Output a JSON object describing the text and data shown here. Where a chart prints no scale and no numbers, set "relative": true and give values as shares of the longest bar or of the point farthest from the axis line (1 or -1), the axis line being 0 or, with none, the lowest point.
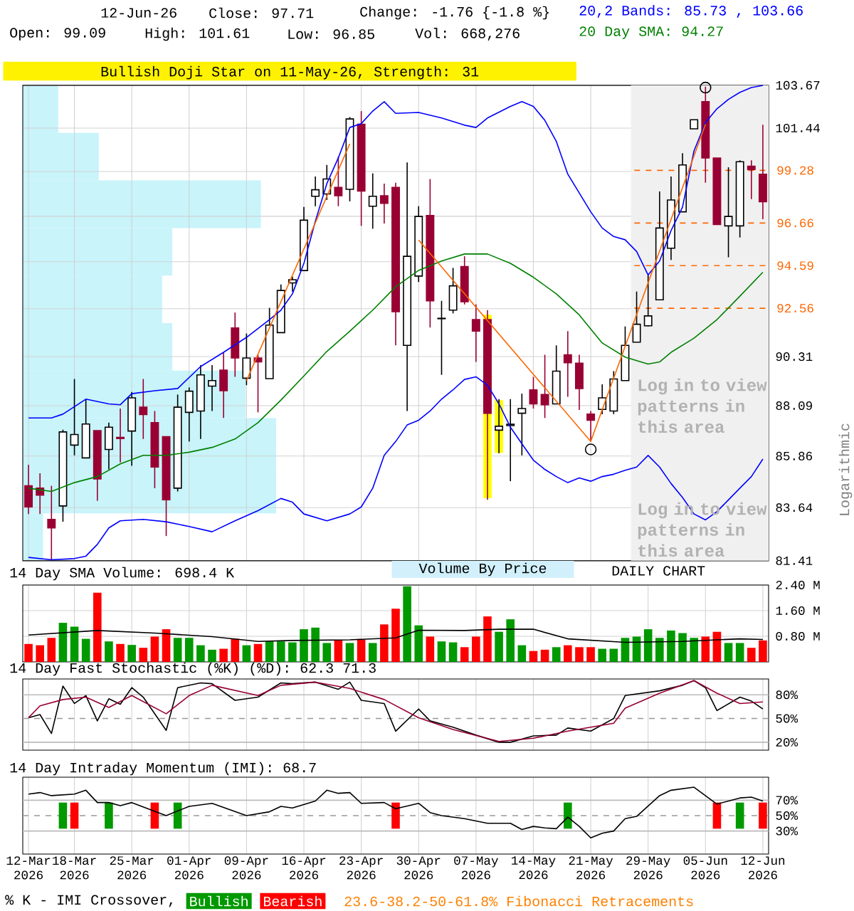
{
  "chart_data": [
    {
      "type": "candlestick",
      "categories": [
        null,
        null,
        null,
        null,
        null,
        null,
        null,
        null,
        null,
        null,
        null,
        null,
        null,
        null,
        null,
        null,
        null,
        null,
        null,
        null,
        null,
        null,
        null,
        null,
        null,
        null,
        null,
        null,
        null,
        null,
        null,
        null,
        null,
        null,
        null,
        null,
        null,
        null,
        null,
        null,
        null,
        null,
        null,
        null,
        null,
        null,
        null,
        null,
        null,
        null,
        null,
        null,
        null,
        null,
        null,
        null,
        null,
        null,
        null,
        null,
        null,
        null,
        null,
        null,
        null
      ],
      "ohlc": [
        [
          84.57,
          85.48,
          83.37,
          83.67
        ],
        [
          84.47,
          85.11,
          83.37,
          84.17
        ],
        [
          83.14,
          84.57,
          81.45,
          82.78
        ],
        [
          83.71,
          87.02,
          83.04,
          86.92
        ],
        [
          86.34,
          89.29,
          85.89,
          86.81
        ],
        [
          85.78,
          88.38,
          85.78,
          87.27
        ],
        [
          86.98,
          86.98,
          83.93,
          84.87
        ],
        [
          86.15,
          87.33,
          85.28,
          87.13
        ],
        [
          86.68,
          87.96,
          85.58,
          86.63
        ],
        [
          86.96,
          88.7,
          85.44,
          88.44
        ],
        [
          88.02,
          89.29,
          86.61,
          87.69
        ],
        [
          87.33,
          87.85,
          84.47,
          85.38
        ],
        [
          86.71,
          86.71,
          82.44,
          83.97
        ],
        [
          84.47,
          88.59,
          84.33,
          88.02
        ],
        [
          87.79,
          88.91,
          86.5,
          88.74
        ],
        [
          87.85,
          89.92,
          86.61,
          89.48
        ],
        [
          88.97,
          89.92,
          87.85,
          89.22
        ],
        [
          89.69,
          90.51,
          87.54,
          88.76
        ],
        [
          91.64,
          92.36,
          89.39,
          90.25
        ],
        [
          89.33,
          91.38,
          89.01,
          90.25
        ],
        [
          90.25,
          90.4,
          87.79,
          90.07
        ],
        [
          89.31,
          92.58,
          89.31,
          91.77
        ],
        [
          91.42,
          93.69,
          91.42,
          93.4
        ],
        [
          93.76,
          94.07,
          93.35,
          93.91
        ],
        [
          94.35,
          97.45,
          94.35,
          96.8
        ],
        [
          97.98,
          98.97,
          97.49,
          98.31
        ],
        [
          98.1,
          99.56,
          97.8,
          98.85
        ],
        [
          98.43,
          99.98,
          97.49,
          98.01
        ],
        [
          98.33,
          102.01,
          97.73,
          101.91
        ],
        [
          101.64,
          102.32,
          96.52,
          98.24
        ],
        [
          97.49,
          99.13,
          96.38,
          97.98
        ],
        [
          98.01,
          98.62,
          96.64,
          97.63
        ],
        [
          98.43,
          98.66,
          90.83,
          92.4
        ],
        [
          90.83,
          99.68,
          87.85,
          95.04
        ],
        [
          94.09,
          97.49,
          93.8,
          96.98
        ],
        [
          97.03,
          98.85,
          91.66,
          92.91
        ],
        [
          92.07,
          92.91,
          89.48,
          92.09
        ],
        [
          92.47,
          94.48,
          92.32,
          93.62
        ],
        [
          94.54,
          95.04,
          92.74,
          92.87
        ],
        [
          92.03,
          92.74,
          90.07,
          91.49
        ],
        [
          92.03,
          92.47,
          83.97,
          87.75
        ],
        [
          87.0,
          88.38,
          85.99,
          87.17
        ],
        [
          87.2,
          88.38,
          84.77,
          87.26
        ],
        [
          87.75,
          88.63,
          85.89,
          87.96
        ],
        [
          88.8,
          89.39,
          87.96,
          88.17
        ],
        [
          88.59,
          90.4,
          87.54,
          88.13
        ],
        [
          88.17,
          90.83,
          88.17,
          89.65
        ],
        [
          90.4,
          91.49,
          88.49,
          90.03
        ],
        [
          90.01,
          90.4,
          87.9,
          88.86
        ],
        [
          87.71,
          87.85,
          86.5,
          87.44
        ],
        [
          87.92,
          89.05,
          87.71,
          88.44
        ],
        [
          87.85,
          89.65,
          87.71,
          89.29
        ],
        [
          89.22,
          91.71,
          89.22,
          90.83
        ],
        [
          90.98,
          93.35,
          90.98,
          91.81
        ],
        [
          91.74,
          94.14,
          91.71,
          92.2
        ],
        [
          92.96,
          98.22,
          92.96,
          96.41
        ],
        [
          95.43,
          98.97,
          94.86,
          97.8
        ],
        [
          97.21,
          100.15,
          97.21,
          99.56
        ],
        [
          101.4,
          101.87,
          101.4,
          101.87
        ],
        [
          102.81,
          103.6,
          98.66,
          99.91
        ],
        [
          99.91,
          99.91,
          96.59,
          96.59
        ],
        [
          96.52,
          99.44,
          94.99,
          96.98
        ],
        [
          96.52,
          99.79,
          95.95,
          99.72
        ],
        [
          99.49,
          99.79,
          97.84,
          99.32
        ],
        [
          99.09,
          101.61,
          96.85,
          97.71
        ]
      ],
      "ylim": [
        81.41,
        103.67
      ],
      "yticks": [
        81.41,
        83.64,
        85.86,
        88.09,
        90.31,
        {
          "value": 92.54,
          "label": null
        },
        {
          "value": 94.77,
          "label": null
        },
        {
          "value": 96.99,
          "label": null
        },
        {
          "value": 99.22,
          "label": null
        },
        101.44,
        103.67
      ],
      "log": "y",
      "ylabel": "Logarithmic",
      "grid": true,
      "tick_labels": "y",
      "series": [
        {
          "type": "bar",
          "color": "#ffff00",
          "base": [
            null,
            null,
            null,
            null,
            null,
            null,
            null,
            null,
            null,
            null,
            null,
            null,
            null,
            null,
            null,
            null,
            null,
            null,
            null,
            null,
            null,
            null,
            null,
            null,
            null,
            null,
            null,
            null,
            null,
            null,
            null,
            null,
            null,
            null,
            null,
            null,
            null,
            null,
            null,
            null,
            84.05,
            86.0,
            null,
            null,
            null,
            null,
            null,
            null,
            null,
            null,
            null,
            null,
            null,
            null,
            null,
            null,
            null,
            null,
            null,
            null,
            null,
            null,
            null,
            null,
            null
          ],
          "values": [
            null,
            null,
            null,
            null,
            null,
            null,
            null,
            null,
            null,
            null,
            null,
            null,
            null,
            null,
            null,
            null,
            null,
            null,
            null,
            null,
            null,
            null,
            null,
            null,
            null,
            null,
            null,
            null,
            null,
            null,
            null,
            null,
            null,
            null,
            null,
            null,
            null,
            null,
            null,
            null,
            8.21,
            2.34,
            null,
            null,
            null,
            null,
            null,
            null,
            null,
            null,
            null,
            null,
            null,
            null,
            null,
            null,
            null,
            null,
            null,
            null,
            null,
            null,
            null,
            null,
            null
          ]
        },
        {
          "type": "line",
          "color": "#0000ff",
          "values": [
            87.54,
            null,
            87.54,
            87.71,
            null,
            88.38,
            null,
            88.17,
            88.13,
            88.63,
            null,
            88.76,
            null,
            88.86,
            null,
            89.86,
            null,
            90.51,
            null,
            91.2,
            null,
            92.03,
            92.47,
            93.24,
            94.7,
            96.75,
            98.62,
            99.91,
            101.47,
            101.67,
            102.32,
            102.81,
            102.2,
            null,
            102.25,
            null,
            101.96,
            null,
            101.59,
            101.47,
            101.96,
            null,
            102.56,
            102.81,
            102.56,
            101.84,
            100.75,
            99.09,
            98.15,
            97.21,
            96.41,
            96.0,
            95.84,
            95.27,
            94.14,
            94.81,
            96.29,
            97.45,
            100.27,
            101.72,
            102.44,
            102.93,
            103.3,
            103.55,
            103.66
          ]
        },
        {
          "type": "line",
          "color": "#0000ff",
          "values": [
            81.55,
            null,
            81.45,
            null,
            81.5,
            81.6,
            82.09,
            82.78,
            83.08,
            null,
            83.14,
            null,
            83.04,
            null,
            82.84,
            null,
            82.62,
            null,
            83.08,
            null,
            83.51,
            null,
            84.03,
            83.87,
            83.37,
            null,
            83.08,
            null,
            83.37,
            83.67,
            84.47,
            85.89,
            86.5,
            87.23,
            87.44,
            87.85,
            88.38,
            88.8,
            89.27,
            89.39,
            89.01,
            88.17,
            87.13,
            86.4,
            85.68,
            85.28,
            84.97,
            84.71,
            84.91,
            84.77,
            84.97,
            85.07,
            85.24,
            85.38,
            85.89,
            85.38,
            84.67,
            84.07,
            83.37,
            83.12,
            83.47,
            83.97,
            84.47,
            84.97,
            85.73
          ]
        },
        {
          "type": "line",
          "color": "#008000",
          "values": [
            84.47,
            null,
            84.33,
            null,
            84.71,
            null,
            84.97,
            null,
            85.52,
            null,
            85.89,
            null,
            85.89,
            null,
            86.03,
            null,
            86.24,
            null,
            86.61,
            null,
            87.33,
            null,
            88.34,
            null,
            89.43,
            null,
            90.55,
            null,
            91.49,
            null,
            92.47,
            null,
            93.58,
            null,
            94.36,
            null,
            94.81,
            null,
            95.15,
            null,
            95.15,
            null,
            94.7,
            null,
            94.03,
            null,
            93.24,
            null,
            92.25,
            null,
            90.94,
            null,
            90.29,
            null,
            89.97,
            90.07,
            90.51,
            null,
            91.16,
            null,
            92.03,
            null,
            93.13,
            null,
            94.27
          ]
        },
        {
          "type": "line",
          "color": "#ff6600",
          "values": [
            null,
            null,
            null,
            null,
            null,
            null,
            null,
            null,
            null,
            null,
            null,
            null,
            null,
            null,
            null,
            null,
            null,
            null,
            null,
            89.22,
            null,
            null,
            null,
            null,
            null,
            null,
            null,
            null,
            100.63,
            null,
            null,
            null,
            null,
            null,
            null,
            null,
            null,
            null,
            null,
            null,
            null,
            null,
            null,
            null,
            null,
            null,
            null,
            null,
            null,
            null,
            null,
            null,
            null,
            null,
            null,
            null,
            null,
            null,
            null,
            null,
            null,
            null,
            null,
            null,
            null
          ]
        },
        {
          "type": "line",
          "color": "#ff6600",
          "values": [
            null,
            null,
            null,
            null,
            null,
            null,
            null,
            null,
            null,
            null,
            null,
            null,
            null,
            null,
            null,
            null,
            null,
            null,
            null,
            null,
            null,
            null,
            null,
            null,
            null,
            null,
            null,
            null,
            null,
            null,
            null,
            null,
            null,
            null,
            95.83,
            null,
            null,
            null,
            null,
            null,
            null,
            null,
            null,
            null,
            null,
            null,
            null,
            null,
            null,
            86.5,
            null,
            null,
            null,
            null,
            null,
            null,
            null,
            null,
            null,
            101.64,
            null,
            null,
            null,
            null,
            null
          ]
        },
        {
          "type": "scatter",
          "color": "#000000",
          "marker": "circle",
          "values": [
            null,
            null,
            null,
            null,
            null,
            null,
            null,
            null,
            null,
            null,
            null,
            null,
            null,
            null,
            null,
            null,
            null,
            null,
            null,
            null,
            null,
            null,
            null,
            null,
            null,
            null,
            null,
            null,
            null,
            null,
            null,
            null,
            null,
            null,
            null,
            null,
            null,
            null,
            null,
            null,
            null,
            null,
            null,
            null,
            null,
            null,
            null,
            null,
            null,
            86.15,
            null,
            null,
            null,
            null,
            null,
            null,
            null,
            null,
            null,
            103.55,
            null,
            null,
            null,
            null,
            null
          ]
        }
      ],
      "ref_lines": [
        {
          "axis": "y",
          "value": 99.28,
          "label": "99.28",
          "color": "#ff6600",
          "line_style": "dashed"
        },
        {
          "axis": "y",
          "value": 96.66,
          "label": "96.66",
          "color": "#ff6600",
          "line_style": "dashed"
        },
        {
          "axis": "y",
          "value": 94.59,
          "label": "94.59",
          "color": "#ff6600",
          "line_style": "dashed"
        },
        {
          "axis": "y",
          "value": 92.56,
          "label": "92.56",
          "color": "#ff6600",
          "line_style": "dashed"
        }
      ],
      "annotations": [
        "12-Jun-26",
        "Close: 97.71",
        "Change: -1.76 {-1.8 %}",
        "Open: 99.09",
        "High: 101.61",
        "Low: 96.85",
        "Vol: 668,276",
        "20,2 Bands: 85.73 , 103.66",
        "20 Day SMA: 94.27",
        "Bullish Doji Star on 11-May-26, Strength: 31",
        "DAILY CHART",
        "Log in to view patterns in this area",
        "Log in to view patterns in this area",
        "Volume By Price"
      ]
    },
    {
      "type": "bar",
      "title": "14 Day SMA Volume: 698.4 K",
      "categories": [
        null,
        null,
        null,
        null,
        null,
        null,
        null,
        null,
        null,
        null,
        null,
        null,
        null,
        null,
        null,
        null,
        null,
        null,
        null,
        null,
        null,
        null,
        null,
        null,
        null,
        null,
        null,
        null,
        null,
        null,
        null,
        null,
        null,
        null,
        null,
        null,
        null,
        null,
        null,
        null,
        null,
        null,
        null,
        null,
        null,
        null,
        null,
        null,
        null,
        null,
        null,
        null,
        null,
        null,
        null,
        null,
        null,
        null,
        null,
        null,
        null,
        null,
        null,
        null,
        null
      ],
      "ylim": [
        0,
        2.4
      ],
      "yticks": [
        {
          "value": 0.8,
          "label": "0.80 M"
        },
        {
          "value": 1.6,
          "label": "1.60 M"
        },
        {
          "value": 2.4,
          "label": "2.40 M"
        }
      ],
      "grid": true,
      "tick_labels": "y",
      "series": [
        {
          "values": [
            0.56,
            0.52,
            0.75,
            1.22,
            1.1,
            0.72,
            2.16,
            0.64,
            0.56,
            0.53,
            0.44,
            0.79,
            1.02,
            0.75,
            0.75,
            0.52,
            0.38,
            0.41,
            0.72,
            0.52,
            0.56,
            0.64,
            0.64,
            0.61,
            1.02,
            1.07,
            0.59,
            0.69,
            0.59,
            0.69,
            0.59,
            1.17,
            1.66,
            2.36,
            1.14,
            0.79,
            0.64,
            0.61,
            0.46,
            0.79,
            1.42,
            0.94,
            1.33,
            0.52,
            0.34,
            0.38,
            0.46,
            0.52,
            0.46,
            0.46,
            0.41,
            0.41,
            0.75,
            0.79,
            1.02,
            0.75,
            0.98,
            0.9,
            0.75,
            0.79,
            0.94,
            0.59,
            0.59,
            0.44,
            0.67
          ],
          "colors": [
            "#ff0000",
            "#ff0000",
            "#ff0000",
            "#009900",
            "#009900",
            "#009900",
            "#ff0000",
            "#009900",
            "#ff0000",
            "#009900",
            "#ff0000",
            "#ff0000",
            "#ff0000",
            "#009900",
            "#009900",
            "#009900",
            "#009900",
            "#ff0000",
            "#ff0000",
            "#009900",
            "#ff0000",
            "#009900",
            "#009900",
            "#009900",
            "#009900",
            "#009900",
            "#009900",
            "#ff0000",
            "#009900",
            "#ff0000",
            "#009900",
            "#ff0000",
            "#ff0000",
            "#009900",
            "#009900",
            "#ff0000",
            "#009900",
            "#009900",
            "#ff0000",
            "#ff0000",
            "#ff0000",
            "#009900",
            "#009900",
            "#009900",
            "#ff0000",
            "#ff0000",
            "#009900",
            "#ff0000",
            "#ff0000",
            "#ff0000",
            "#009900",
            "#009900",
            "#009900",
            "#009900",
            "#009900",
            "#009900",
            "#009900",
            "#009900",
            "#009900",
            "#ff0000",
            "#ff0000",
            "#009900",
            "#009900",
            "#ff0000",
            "#ff0000"
          ]
        },
        {
          "type": "line",
          "color": "#000000",
          "values": [
            0.84,
            null,
            null,
            null,
            null,
            null,
            0.98,
            null,
            null,
            null,
            null,
            0.9,
            null,
            null,
            null,
            null,
            0.79,
            null,
            null,
            null,
            0.64,
            null,
            null,
            0.67,
            null,
            null,
            null,
            null,
            0.69,
            null,
            null,
            null,
            0.75,
            null,
            0.99,
            null,
            null,
            null,
            0.98,
            null,
            null,
            1.02,
            null,
            null,
            1.02,
            null,
            null,
            0.72,
            null,
            null,
            null,
            null,
            0.61,
            null,
            null,
            null,
            null,
            0.64,
            null,
            null,
            null,
            null,
            0.72,
            null,
            0.7
          ]
        }
      ]
    },
    {
      "type": "line",
      "title": "14 Day Fast Stochastic (%K) (%D): 62.3  71.3",
      "categories": [
        null,
        null,
        null,
        null,
        null,
        null,
        null,
        null,
        null,
        null,
        null,
        null,
        null,
        null,
        null,
        null,
        null,
        null,
        null,
        null,
        null,
        null,
        null,
        null,
        null,
        null,
        null,
        null,
        null,
        null,
        null,
        null,
        null,
        null,
        null,
        null,
        null,
        null,
        null,
        null,
        null,
        null,
        null,
        null,
        null,
        null,
        null,
        null,
        null,
        null,
        null,
        null,
        null,
        null,
        null,
        null,
        null,
        null,
        null,
        null,
        null,
        null,
        null,
        null,
        null
      ],
      "ylim": [
        10,
        100
      ],
      "yticks": [
        {
          "value": 20,
          "label": "20%"
        },
        {
          "value": 50,
          "label": "50%"
        },
        {
          "value": 80,
          "label": "80%"
        }
      ],
      "grid": "x",
      "tick_labels": "y",
      "ref_lines": [
        {
          "axis": "y",
          "value": 20,
          "color": "#bbbbbb"
        },
        {
          "axis": "y",
          "value": 50,
          "color": "#999999",
          "line_style": "dashed"
        },
        {
          "axis": "y",
          "value": 80,
          "color": "#bbbbbb"
        }
      ],
      "series": [
        {
          "color": "#000000",
          "values": [
            51,
            55,
            31,
            91,
            69,
            79,
            47,
            75,
            68,
            89,
            77,
            null,
            35,
            89,
            null,
            95,
            94,
            null,
            73,
            null,
            77,
            null,
            95,
            94,
            null,
            96,
            null,
            87,
            96,
            73,
            null,
            69,
            34,
            null,
            62,
            47,
            null,
            39,
            null,
            29,
            null,
            20,
            20,
            null,
            28,
            null,
            29,
            38,
            null,
            34,
            null,
            50,
            79,
            null,
            null,
            85,
            null,
            92,
            98,
            89,
            60,
            null,
            77,
            72,
            62
          ]
        },
        {
          "color": "#990033",
          "values": [
            51,
            66,
            null,
            74,
            null,
            77,
            null,
            64,
            null,
            79,
            null,
            null,
            56,
            null,
            79,
            null,
            92,
            null,
            null,
            null,
            79,
            null,
            92,
            null,
            null,
            96,
            null,
            null,
            88,
            null,
            null,
            74,
            null,
            null,
            51,
            null,
            null,
            36,
            null,
            null,
            null,
            21,
            null,
            null,
            25,
            null,
            null,
            34,
            null,
            null,
            null,
            44,
            63,
            null,
            null,
            82,
            null,
            null,
            98,
            null,
            82,
            null,
            69,
            null,
            71
          ]
        }
      ]
    },
    {
      "type": "line",
      "title": "14 Day Intraday Momentum (IMI): 68.7",
      "categories": [
        "12-Mar 2026",
        null,
        null,
        null,
        "18-Mar 2026",
        null,
        null,
        null,
        null,
        "25-Mar 2026",
        null,
        null,
        null,
        null,
        "01-Apr 2026",
        null,
        null,
        null,
        null,
        "09-Apr 2026",
        null,
        null,
        null,
        null,
        "16-Apr 2026",
        null,
        null,
        null,
        null,
        "23-Apr 2026",
        null,
        null,
        null,
        null,
        "30-Apr 2026",
        null,
        null,
        null,
        null,
        "07-May 2026",
        null,
        null,
        null,
        null,
        "14-May 2026",
        null,
        null,
        null,
        null,
        "21-May 2026",
        null,
        null,
        null,
        null,
        "29-May 2026",
        null,
        null,
        null,
        null,
        "05-Jun 2026",
        null,
        null,
        null,
        null,
        "12-Jun 2026"
      ],
      "ylim": [
        0,
        100
      ],
      "yticks": [
        {
          "value": 30,
          "label": "30%"
        },
        {
          "value": 50,
          "label": "50%"
        },
        {
          "value": 70,
          "label": "70%"
        }
      ],
      "grid": "x",
      "legend": "bottom",
      "legend_title": "% K - IMI Crossover,",
      "ref_lines": [
        {
          "axis": "y",
          "value": 30,
          "color": "#bbbbbb"
        },
        {
          "axis": "y",
          "value": 50,
          "color": "#999999",
          "line_style": "dashed"
        },
        {
          "axis": "y",
          "value": 70,
          "color": "#bbbbbb"
        }
      ],
      "series": [
        {
          "type": "bar",
          "name": "Bullish",
          "color": "#009900",
          "base": [
            null,
            null,
            null,
            33,
            null,
            null,
            null,
            33,
            null,
            null,
            null,
            null,
            null,
            33,
            null,
            null,
            null,
            null,
            null,
            null,
            null,
            null,
            null,
            null,
            null,
            null,
            null,
            null,
            null,
            null,
            null,
            null,
            null,
            null,
            null,
            null,
            null,
            null,
            null,
            null,
            null,
            null,
            null,
            null,
            null,
            null,
            null,
            33,
            null,
            null,
            null,
            null,
            null,
            null,
            null,
            null,
            null,
            null,
            null,
            null,
            null,
            null,
            33,
            null,
            null
          ],
          "values": [
            null,
            null,
            null,
            34,
            null,
            null,
            null,
            34,
            null,
            null,
            null,
            null,
            null,
            34,
            null,
            null,
            null,
            null,
            null,
            null,
            null,
            null,
            null,
            null,
            null,
            null,
            null,
            null,
            null,
            null,
            null,
            null,
            null,
            null,
            null,
            null,
            null,
            null,
            null,
            null,
            null,
            null,
            null,
            null,
            null,
            null,
            null,
            34,
            null,
            null,
            null,
            null,
            null,
            null,
            null,
            null,
            null,
            null,
            null,
            null,
            null,
            null,
            34,
            null,
            null
          ]
        },
        {
          "type": "bar",
          "name": "Bearish",
          "color": "#ff0000",
          "base": [
            null,
            null,
            null,
            null,
            33,
            null,
            null,
            null,
            null,
            null,
            null,
            33,
            null,
            null,
            null,
            null,
            null,
            null,
            null,
            null,
            null,
            null,
            null,
            null,
            null,
            null,
            null,
            null,
            null,
            null,
            null,
            null,
            33,
            null,
            null,
            null,
            null,
            null,
            null,
            null,
            null,
            null,
            null,
            null,
            null,
            null,
            null,
            null,
            null,
            null,
            null,
            null,
            null,
            null,
            null,
            null,
            null,
            null,
            null,
            null,
            33,
            null,
            null,
            null,
            33
          ],
          "values": [
            null,
            null,
            null,
            null,
            34,
            null,
            null,
            null,
            null,
            null,
            null,
            34,
            null,
            null,
            null,
            null,
            null,
            null,
            null,
            null,
            null,
            null,
            null,
            null,
            null,
            null,
            null,
            null,
            null,
            null,
            null,
            null,
            34,
            null,
            null,
            null,
            null,
            null,
            null,
            null,
            null,
            null,
            null,
            null,
            null,
            null,
            null,
            null,
            null,
            null,
            null,
            null,
            null,
            null,
            null,
            null,
            null,
            null,
            null,
            null,
            34,
            null,
            null,
            null,
            34
          ]
        },
        {
          "color": "#000000",
          "values": [
            78,
            80,
            76,
            null,
            78,
            83,
            67,
            67,
            63,
            67,
            null,
            null,
            50,
            null,
            62,
            null,
            66,
            null,
            null,
            50,
            null,
            55,
            62,
            60,
            null,
            69,
            83,
            79,
            80,
            66,
            null,
            67,
            59,
            null,
            66,
            54,
            50,
            null,
            46,
            null,
            40,
            null,
            40,
            32,
            36,
            34,
            33,
            48,
            36,
            21,
            27,
            30,
            46,
            49,
            null,
            76,
            83,
            null,
            87,
            null,
            65,
            null,
            73,
            74,
            69
          ]
        }
      ],
      "annotations": [
        "23.6-38.2-50-61.8% Fibonacci Retracements"
      ]
    },
    {
      "type": "bar",
      "orientation": "horizontal",
      "relative": true,
      "color": "#c8f4fa",
      "categories": [
        null,
        null,
        null,
        null,
        null,
        null,
        null,
        null,
        null,
        null
      ],
      "values": [
        0.14,
        0.3,
        0.94,
        0.59,
        0.55,
        0.59,
        0.88,
        1,
        1,
        0.08
      ]
    }
  ]
}
